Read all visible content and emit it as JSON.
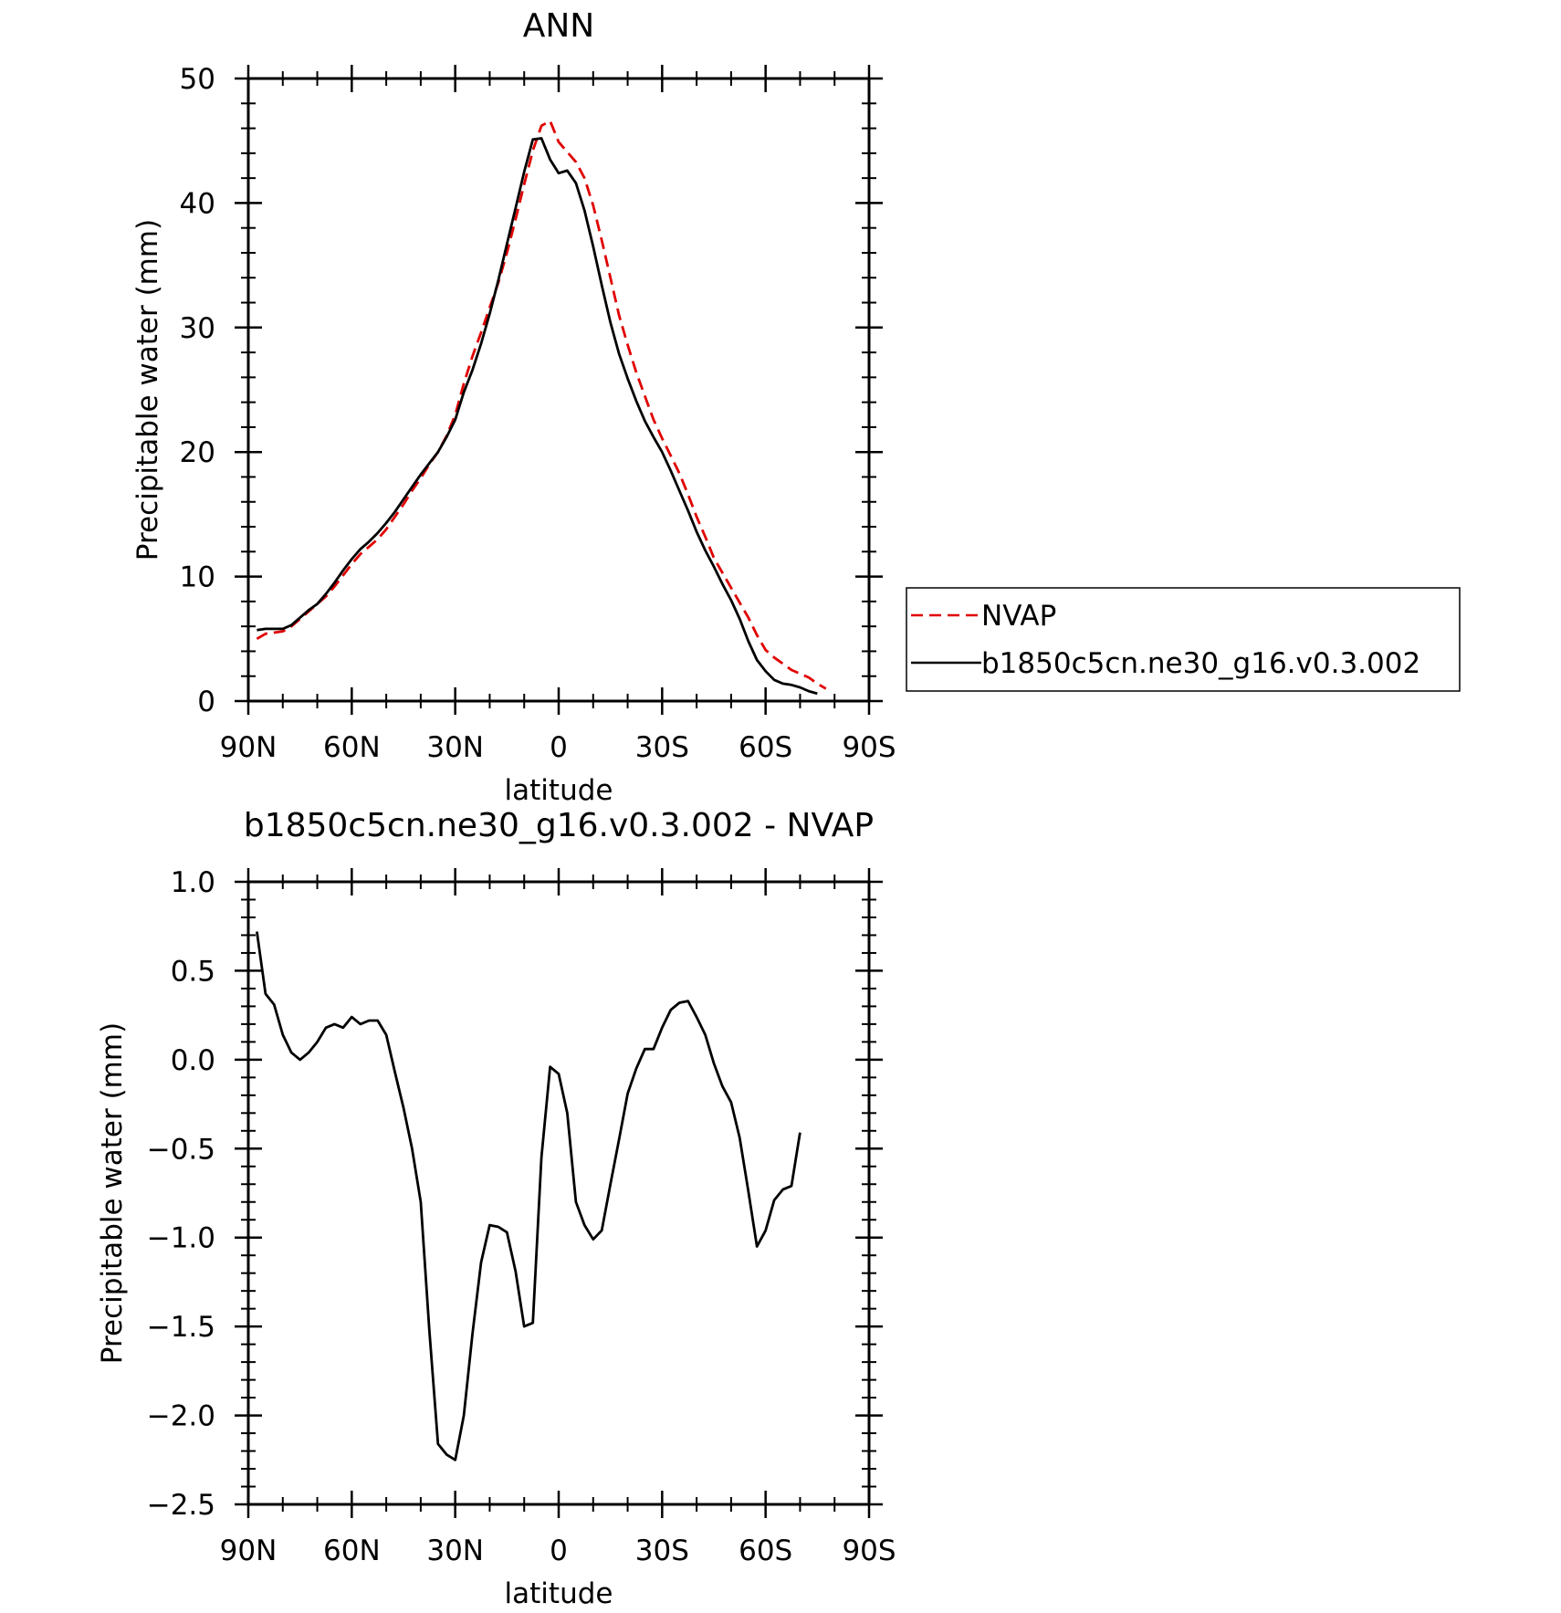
{
  "chart_data": [
    {
      "type": "line",
      "title": "ANN",
      "xlabel": "latitude",
      "ylabel": "Precipitable water (mm)",
      "xlim": [
        90,
        -90
      ],
      "ylim": [
        0,
        50
      ],
      "x_ticks": [
        90,
        60,
        30,
        0,
        -30,
        -60,
        -90
      ],
      "x_tick_labels": [
        "90N",
        "60N",
        "30N",
        "0",
        "30S",
        "60S",
        "90S"
      ],
      "y_ticks": [
        0,
        10,
        20,
        30,
        40,
        50
      ],
      "y_tick_labels": [
        "0",
        "10",
        "20",
        "30",
        "40",
        "50"
      ],
      "grid": false,
      "legend_position": "right, outside plot area",
      "series": [
        {
          "name": "NVAP",
          "color": "#e00000",
          "style": "dashed",
          "points": [
            [
              87.5,
              5.0
            ],
            [
              85,
              5.4
            ],
            [
              82.5,
              5.5
            ],
            [
              80,
              5.6
            ],
            [
              77.5,
              6.0
            ],
            [
              75,
              6.6
            ],
            [
              72.5,
              7.2
            ],
            [
              70,
              7.8
            ],
            [
              67.5,
              8.4
            ],
            [
              65,
              9.2
            ],
            [
              62.5,
              10.1
            ],
            [
              60,
              11.0
            ],
            [
              57.5,
              11.8
            ],
            [
              55,
              12.4
            ],
            [
              52.5,
              13.0
            ],
            [
              50,
              13.8
            ],
            [
              47.5,
              14.8
            ],
            [
              45,
              15.8
            ],
            [
              42.5,
              16.9
            ],
            [
              40,
              17.9
            ],
            [
              37.5,
              19.0
            ],
            [
              35,
              20.0
            ],
            [
              32.5,
              21.3
            ],
            [
              30,
              23.0
            ],
            [
              27.5,
              25.5
            ],
            [
              25,
              27.7
            ],
            [
              22.5,
              29.6
            ],
            [
              20,
              31.6
            ],
            [
              17.5,
              33.6
            ],
            [
              15,
              36.0
            ],
            [
              12.5,
              38.7
            ],
            [
              10,
              41.5
            ],
            [
              7.5,
              44.2
            ],
            [
              5,
              46.2
            ],
            [
              2.5,
              46.6
            ],
            [
              0,
              44.9
            ],
            [
              -2.5,
              44.1
            ],
            [
              -5,
              43.3
            ],
            [
              -7.5,
              42.0
            ],
            [
              -10,
              39.8
            ],
            [
              -12.5,
              37.0
            ],
            [
              -15,
              34.0
            ],
            [
              -17.5,
              31.0
            ],
            [
              -20,
              28.6
            ],
            [
              -22.5,
              26.4
            ],
            [
              -25,
              24.5
            ],
            [
              -27.5,
              22.6
            ],
            [
              -30,
              21.1
            ],
            [
              -32.5,
              19.7
            ],
            [
              -35,
              18.3
            ],
            [
              -37.5,
              16.6
            ],
            [
              -40,
              14.8
            ],
            [
              -42.5,
              13.2
            ],
            [
              -45,
              11.5
            ],
            [
              -47.5,
              10.3
            ],
            [
              -50,
              9.1
            ],
            [
              -52.5,
              7.9
            ],
            [
              -55,
              6.7
            ],
            [
              -57.5,
              5.3
            ],
            [
              -60,
              4.1
            ],
            [
              -62.5,
              3.5
            ],
            [
              -65,
              3.0
            ],
            [
              -67.5,
              2.5
            ],
            [
              -70,
              2.2
            ],
            [
              -72.5,
              1.9
            ],
            [
              -75,
              1.4
            ],
            [
              -77.5,
              1.0
            ]
          ]
        },
        {
          "name": "b1850c5cn.ne30_g16.v0.3.002",
          "color": "#000000",
          "style": "solid",
          "points": [
            [
              87.5,
              5.7
            ],
            [
              85,
              5.8
            ],
            [
              82.5,
              5.8
            ],
            [
              80,
              5.8
            ],
            [
              77.5,
              6.1
            ],
            [
              75,
              6.7
            ],
            [
              72.5,
              7.3
            ],
            [
              70,
              7.8
            ],
            [
              67.5,
              8.6
            ],
            [
              65,
              9.5
            ],
            [
              62.5,
              10.5
            ],
            [
              60,
              11.4
            ],
            [
              57.5,
              12.2
            ],
            [
              55,
              12.8
            ],
            [
              52.5,
              13.5
            ],
            [
              50,
              14.3
            ],
            [
              47.5,
              15.2
            ],
            [
              45,
              16.2
            ],
            [
              42.5,
              17.2
            ],
            [
              40,
              18.2
            ],
            [
              37.5,
              19.1
            ],
            [
              35,
              20.0
            ],
            [
              32.5,
              21.2
            ],
            [
              30,
              22.6
            ],
            [
              27.5,
              24.8
            ],
            [
              25,
              26.6
            ],
            [
              22.5,
              28.7
            ],
            [
              20,
              31.1
            ],
            [
              17.5,
              33.8
            ],
            [
              15,
              36.7
            ],
            [
              12.5,
              39.6
            ],
            [
              10,
              42.5
            ],
            [
              7.5,
              45.1
            ],
            [
              5,
              45.2
            ],
            [
              2.5,
              43.5
            ],
            [
              0,
              42.4
            ],
            [
              -2.5,
              42.6
            ],
            [
              -5,
              41.6
            ],
            [
              -7.5,
              39.4
            ],
            [
              -10,
              36.5
            ],
            [
              -12.5,
              33.4
            ],
            [
              -15,
              30.4
            ],
            [
              -17.5,
              27.9
            ],
            [
              -20,
              25.9
            ],
            [
              -22.5,
              24.1
            ],
            [
              -25,
              22.5
            ],
            [
              -27.5,
              21.2
            ],
            [
              -30,
              20.0
            ],
            [
              -32.5,
              18.5
            ],
            [
              -35,
              16.9
            ],
            [
              -37.5,
              15.3
            ],
            [
              -40,
              13.6
            ],
            [
              -42.5,
              12.1
            ],
            [
              -45,
              10.8
            ],
            [
              -47.5,
              9.4
            ],
            [
              -50,
              8.1
            ],
            [
              -52.5,
              6.6
            ],
            [
              -55,
              4.8
            ],
            [
              -57.5,
              3.3
            ],
            [
              -60,
              2.4
            ],
            [
              -62.5,
              1.7
            ],
            [
              -65,
              1.4
            ],
            [
              -67.5,
              1.3
            ],
            [
              -70,
              1.1
            ],
            [
              -72.5,
              0.8
            ],
            [
              -75,
              0.6
            ]
          ]
        }
      ],
      "legend": [
        {
          "label": "NVAP",
          "color": "#e00000",
          "style": "dashed"
        },
        {
          "label": "b1850c5cn.ne30_g16.v0.3.002",
          "color": "#000000",
          "style": "solid"
        }
      ]
    },
    {
      "type": "line",
      "title": "b1850c5cn.ne30_g16.v0.3.002 - NVAP",
      "xlabel": "latitude",
      "ylabel": "Precipitable water (mm)",
      "xlim": [
        90,
        -90
      ],
      "ylim": [
        -2.5,
        1.0
      ],
      "x_ticks": [
        90,
        60,
        30,
        0,
        -30,
        -60,
        -90
      ],
      "x_tick_labels": [
        "90N",
        "60N",
        "30N",
        "0",
        "30S",
        "60S",
        "90S"
      ],
      "y_ticks": [
        1.0,
        0.5,
        0.0,
        -0.5,
        -1.0,
        -1.5,
        -2.0,
        -2.5
      ],
      "y_tick_labels": [
        "1.0",
        "0.5",
        "0.0",
        "−0.5",
        "−1.0",
        "−1.5",
        "−2.0",
        "−2.5"
      ],
      "grid": false,
      "series": [
        {
          "color": "#000000",
          "style": "solid",
          "points": [
            [
              87.5,
              0.72
            ],
            [
              85,
              0.37
            ],
            [
              82.5,
              0.31
            ],
            [
              80,
              0.14
            ],
            [
              77.5,
              0.04
            ],
            [
              75,
              0.0
            ],
            [
              72.5,
              0.04
            ],
            [
              70,
              0.1
            ],
            [
              67.5,
              0.18
            ],
            [
              65,
              0.2
            ],
            [
              62.5,
              0.18
            ],
            [
              60,
              0.24
            ],
            [
              57.5,
              0.2
            ],
            [
              55,
              0.22
            ],
            [
              52.5,
              0.22
            ],
            [
              50,
              0.14
            ],
            [
              47.5,
              -0.07
            ],
            [
              45,
              -0.27
            ],
            [
              42.5,
              -0.5
            ],
            [
              40,
              -0.8
            ],
            [
              37.5,
              -1.52
            ],
            [
              35,
              -2.16
            ],
            [
              32.5,
              -2.22
            ],
            [
              30,
              -2.25
            ],
            [
              27.5,
              -2.0
            ],
            [
              25,
              -1.54
            ],
            [
              22.5,
              -1.14
            ],
            [
              20,
              -0.93
            ],
            [
              17.5,
              -0.94
            ],
            [
              15,
              -0.97
            ],
            [
              12.5,
              -1.19
            ],
            [
              10,
              -1.5
            ],
            [
              7.5,
              -1.48
            ],
            [
              5,
              -0.55
            ],
            [
              2.5,
              -0.04
            ],
            [
              0,
              -0.08
            ],
            [
              -2.5,
              -0.3
            ],
            [
              -5,
              -0.8
            ],
            [
              -7.5,
              -0.93
            ],
            [
              -10,
              -1.01
            ],
            [
              -12.5,
              -0.96
            ],
            [
              -15,
              -0.7
            ],
            [
              -17.5,
              -0.45
            ],
            [
              -20,
              -0.19
            ],
            [
              -22.5,
              -0.05
            ],
            [
              -25,
              0.06
            ],
            [
              -27.5,
              0.06
            ],
            [
              -30,
              0.18
            ],
            [
              -32.5,
              0.28
            ],
            [
              -35,
              0.32
            ],
            [
              -37.5,
              0.33
            ],
            [
              -40,
              0.24
            ],
            [
              -42.5,
              0.14
            ],
            [
              -45,
              -0.02
            ],
            [
              -47.5,
              -0.15
            ],
            [
              -50,
              -0.24
            ],
            [
              -52.5,
              -0.44
            ],
            [
              -55,
              -0.74
            ],
            [
              -57.5,
              -1.05
            ],
            [
              -60,
              -0.96
            ],
            [
              -62.5,
              -0.79
            ],
            [
              -65,
              -0.73
            ],
            [
              -67.5,
              -0.71
            ],
            [
              -70,
              -0.41
            ]
          ]
        }
      ]
    }
  ]
}
